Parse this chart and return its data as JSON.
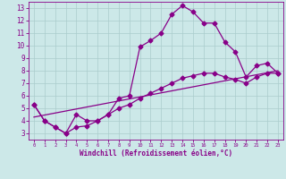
{
  "xlabel": "Windchill (Refroidissement éolien,°C)",
  "background_color": "#cce8e8",
  "line_color": "#880088",
  "grid_color": "#aacccc",
  "xlim": [
    -0.5,
    23.5
  ],
  "ylim": [
    2.5,
    13.5
  ],
  "xticks": [
    0,
    1,
    2,
    3,
    4,
    5,
    6,
    7,
    8,
    9,
    10,
    11,
    12,
    13,
    14,
    15,
    16,
    17,
    18,
    19,
    20,
    21,
    22,
    23
  ],
  "yticks": [
    3,
    4,
    5,
    6,
    7,
    8,
    9,
    10,
    11,
    12,
    13
  ],
  "series1_x": [
    0,
    1,
    2,
    3,
    4,
    5,
    6,
    7,
    8,
    9,
    10,
    11,
    12,
    13,
    14,
    15,
    16,
    17,
    18,
    19,
    20,
    21,
    22,
    23
  ],
  "series1_y": [
    5.3,
    4.0,
    3.5,
    3.0,
    4.5,
    4.0,
    4.0,
    4.5,
    5.8,
    6.0,
    9.9,
    10.4,
    11.0,
    12.5,
    13.2,
    12.7,
    11.8,
    11.8,
    10.3,
    9.5,
    7.5,
    8.4,
    8.6,
    7.8
  ],
  "series2_x": [
    0,
    1,
    2,
    3,
    4,
    5,
    6,
    7,
    8,
    9,
    10,
    11,
    12,
    13,
    14,
    15,
    16,
    17,
    18,
    19,
    20,
    21,
    22,
    23
  ],
  "series2_y": [
    5.3,
    4.0,
    3.5,
    3.0,
    3.5,
    3.6,
    4.0,
    4.5,
    5.0,
    5.3,
    5.8,
    6.2,
    6.6,
    7.0,
    7.4,
    7.6,
    7.8,
    7.8,
    7.5,
    7.3,
    7.0,
    7.5,
    7.8,
    7.8
  ],
  "series3_x": [
    0,
    23
  ],
  "series3_y": [
    4.3,
    8.0
  ],
  "markersize": 2.5,
  "linewidth": 0.9
}
